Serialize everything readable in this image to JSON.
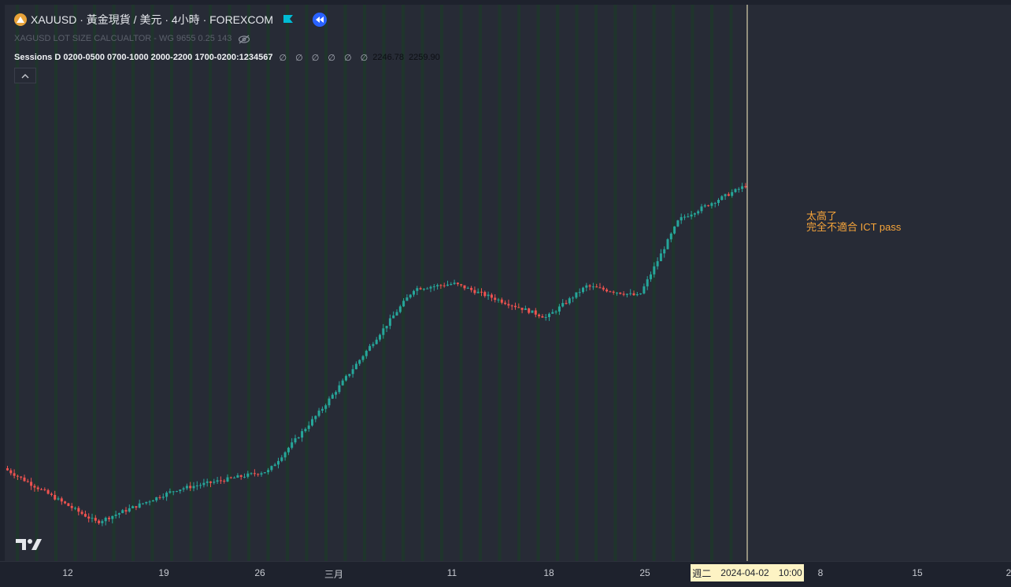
{
  "header": {
    "symbol_title": "XAUUSD · 黃金現貨 / 美元 · 4小時 · FOREXCOM",
    "indicator_1": "XAGUSD LOT SIZE CALCUALTOR - WG 9655 0.25 143",
    "indicator_2": {
      "name": "Sessions D 0200-0500 0700-1000 2000-2200 1700-0200:1234567",
      "placeholders": "∅ ∅ ∅ ∅ ∅ ∅",
      "value_1": "2246.78",
      "value_2": "2259.90"
    }
  },
  "icons": {
    "symbol": "gold-coin-icon",
    "flag": "flag-icon",
    "replay": "rewind-icon",
    "visibility": "eye-off-icon",
    "collapse": "chevron-up-icon",
    "brand": "tradingview-logo-icon"
  },
  "colors": {
    "up_candle": "#26a69a",
    "down_candle": "#ef5350",
    "session_band": "#1e3a2a",
    "crosshair": "#fdf3c4",
    "annotation": "#f7a53a"
  },
  "annotation": {
    "line_1": "太高了",
    "line_2": "完全不適合 ICT pass"
  },
  "time_axis": {
    "ticks": [
      "12",
      "19",
      "26",
      "三月",
      "11",
      "18",
      "25",
      "8",
      "15",
      "2"
    ],
    "crosshair_label": {
      "weekday": "週二",
      "date": "2024-04-02",
      "time": "10:00"
    }
  },
  "chart_data": {
    "type": "candlestick",
    "symbol": "XAUUSD",
    "interval": "4h",
    "x_range": [
      "2024-02-06",
      "2024-04-30"
    ],
    "y_range_estimate": [
      2000,
      2270
    ],
    "approx_price_path": [
      {
        "date": "2024-02-06",
        "close": 2035
      },
      {
        "date": "2024-02-13",
        "close": 1992
      },
      {
        "date": "2024-02-19",
        "close": 2018
      },
      {
        "date": "2024-02-26",
        "close": 2033
      },
      {
        "date": "2024-03-01",
        "close": 2082
      },
      {
        "date": "2024-03-08",
        "close": 2178
      },
      {
        "date": "2024-03-11",
        "close": 2182
      },
      {
        "date": "2024-03-18",
        "close": 2155
      },
      {
        "date": "2024-03-21",
        "close": 2180
      },
      {
        "date": "2024-03-25",
        "close": 2172
      },
      {
        "date": "2024-03-28",
        "close": 2233
      },
      {
        "date": "2024-04-02",
        "close": 2259.9
      }
    ],
    "last_values": {
      "low": 2246.78,
      "close": 2259.9
    },
    "session_bands": true,
    "grid": false
  }
}
